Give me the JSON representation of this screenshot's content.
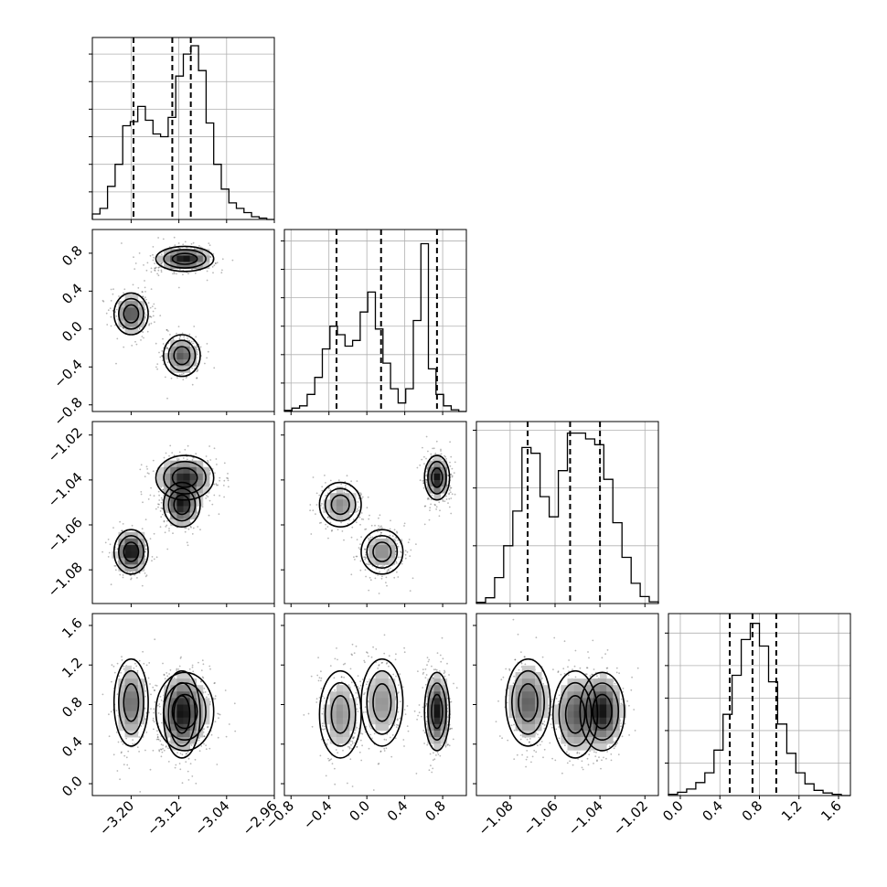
{
  "chart_data": {
    "type": "corner",
    "parameters": [
      {
        "key": "p1",
        "range": [
          -3.265,
          -2.96
        ],
        "ticks": [
          -3.2,
          -3.12,
          -3.04,
          -2.96
        ],
        "tick_labels": [
          "−3.20",
          "−3.12",
          "−3.04",
          "−2.96"
        ],
        "quantiles": [
          -3.196,
          -3.131,
          -3.1
        ],
        "hist_edges": [
          -3.265,
          -2.96
        ],
        "hist_counts": [
          0.2,
          0.4,
          1.2,
          2.0,
          3.4,
          3.55,
          4.1,
          3.6,
          3.1,
          3.0,
          3.7,
          5.2,
          6.0,
          6.3,
          5.4,
          3.5,
          2.0,
          1.1,
          0.6,
          0.4,
          0.25,
          0.1,
          0.05,
          0
        ],
        "hist_ylim": [
          0,
          6.6
        ],
        "hist_gridlines": [
          0,
          1,
          2,
          3,
          4,
          5,
          6
        ]
      },
      {
        "key": "p2",
        "range": [
          -0.87,
          1.05
        ],
        "ticks": [
          -0.8,
          -0.4,
          0.0,
          0.4,
          0.8
        ],
        "tick_labels": [
          "−0.8",
          "−0.4",
          "0.0",
          "0.4",
          "0.8"
        ],
        "quantiles": [
          -0.32,
          0.15,
          0.74
        ],
        "hist_edges": [
          -0.87,
          1.05
        ],
        "hist_counts": [
          0.02,
          0.06,
          0.1,
          0.3,
          0.6,
          1.1,
          1.5,
          1.35,
          1.15,
          1.25,
          1.75,
          2.1,
          1.45,
          0.85,
          0.4,
          0.15,
          0.4,
          1.6,
          2.95,
          0.75,
          0.3,
          0.1,
          0.03,
          0
        ],
        "hist_ylim": [
          0,
          3.2
        ],
        "hist_gridlines": [
          0,
          0.5,
          1,
          1.5,
          2,
          2.5,
          3
        ]
      },
      {
        "key": "p3",
        "range": [
          -1.095,
          -1.014
        ],
        "ticks": [
          -1.08,
          -1.06,
          -1.04,
          -1.02
        ],
        "tick_labels": [
          "−1.08",
          "−1.06",
          "−1.04",
          "−1.02"
        ],
        "quantiles": [
          -1.0722,
          -1.0533,
          -1.04
        ],
        "hist_edges": [
          -1.095,
          -1.014
        ],
        "hist_counts": [
          0.02,
          0.1,
          0.45,
          1.0,
          1.6,
          2.7,
          2.6,
          1.85,
          1.5,
          2.3,
          2.95,
          2.95,
          2.85,
          2.75,
          2.15,
          1.4,
          0.8,
          0.35,
          0.12,
          0.03
        ],
        "hist_ylim": [
          0,
          3.15
        ],
        "hist_gridlines": [
          0,
          1,
          2,
          3
        ]
      },
      {
        "key": "p4",
        "range": [
          -0.12,
          1.72
        ],
        "ticks": [
          0.0,
          0.4,
          0.8,
          1.2,
          1.6
        ],
        "tick_labels": [
          "0.0",
          "0.4",
          "0.8",
          "1.2",
          "1.6"
        ],
        "quantiles": [
          0.5,
          0.73,
          0.97
        ],
        "hist_edges": [
          -0.12,
          1.72
        ],
        "hist_counts": [
          0.02,
          0.05,
          0.1,
          0.2,
          0.35,
          0.7,
          1.25,
          1.85,
          2.4,
          2.65,
          2.3,
          1.75,
          1.1,
          0.65,
          0.35,
          0.18,
          0.08,
          0.04,
          0.02,
          0
        ],
        "hist_ylim": [
          0,
          2.8
        ],
        "hist_gridlines": [
          0,
          0.5,
          1,
          1.5,
          2,
          2.5
        ]
      }
    ],
    "pair_structure": {
      "p1": [
        {
          "mean": -3.11,
          "sd": 0.022,
          "w": 0.42
        },
        {
          "mean": -3.2,
          "sd": 0.013,
          "w": 0.29
        },
        {
          "mean": -3.115,
          "sd": 0.014,
          "w": 0.29
        }
      ],
      "p2": [
        {
          "mean": 0.74,
          "sd": 0.06,
          "w": 0.42
        },
        {
          "mean": 0.16,
          "sd": 0.1,
          "w": 0.29
        },
        {
          "mean": -0.28,
          "sd": 0.1,
          "w": 0.29
        }
      ],
      "p3": [
        {
          "mean": -1.039,
          "sd": 0.0045,
          "w": 0.42
        },
        {
          "mean": -1.072,
          "sd": 0.0045,
          "w": 0.29
        },
        {
          "mean": -1.051,
          "sd": 0.0045,
          "w": 0.29
        }
      ],
      "p4": [
        {
          "mean": 0.73,
          "sd": 0.18,
          "w": 0.42
        },
        {
          "mean": 0.82,
          "sd": 0.2,
          "w": 0.29
        },
        {
          "mean": 0.7,
          "sd": 0.2,
          "w": 0.29
        }
      ]
    },
    "title": "",
    "grid": true,
    "legend": "none"
  }
}
